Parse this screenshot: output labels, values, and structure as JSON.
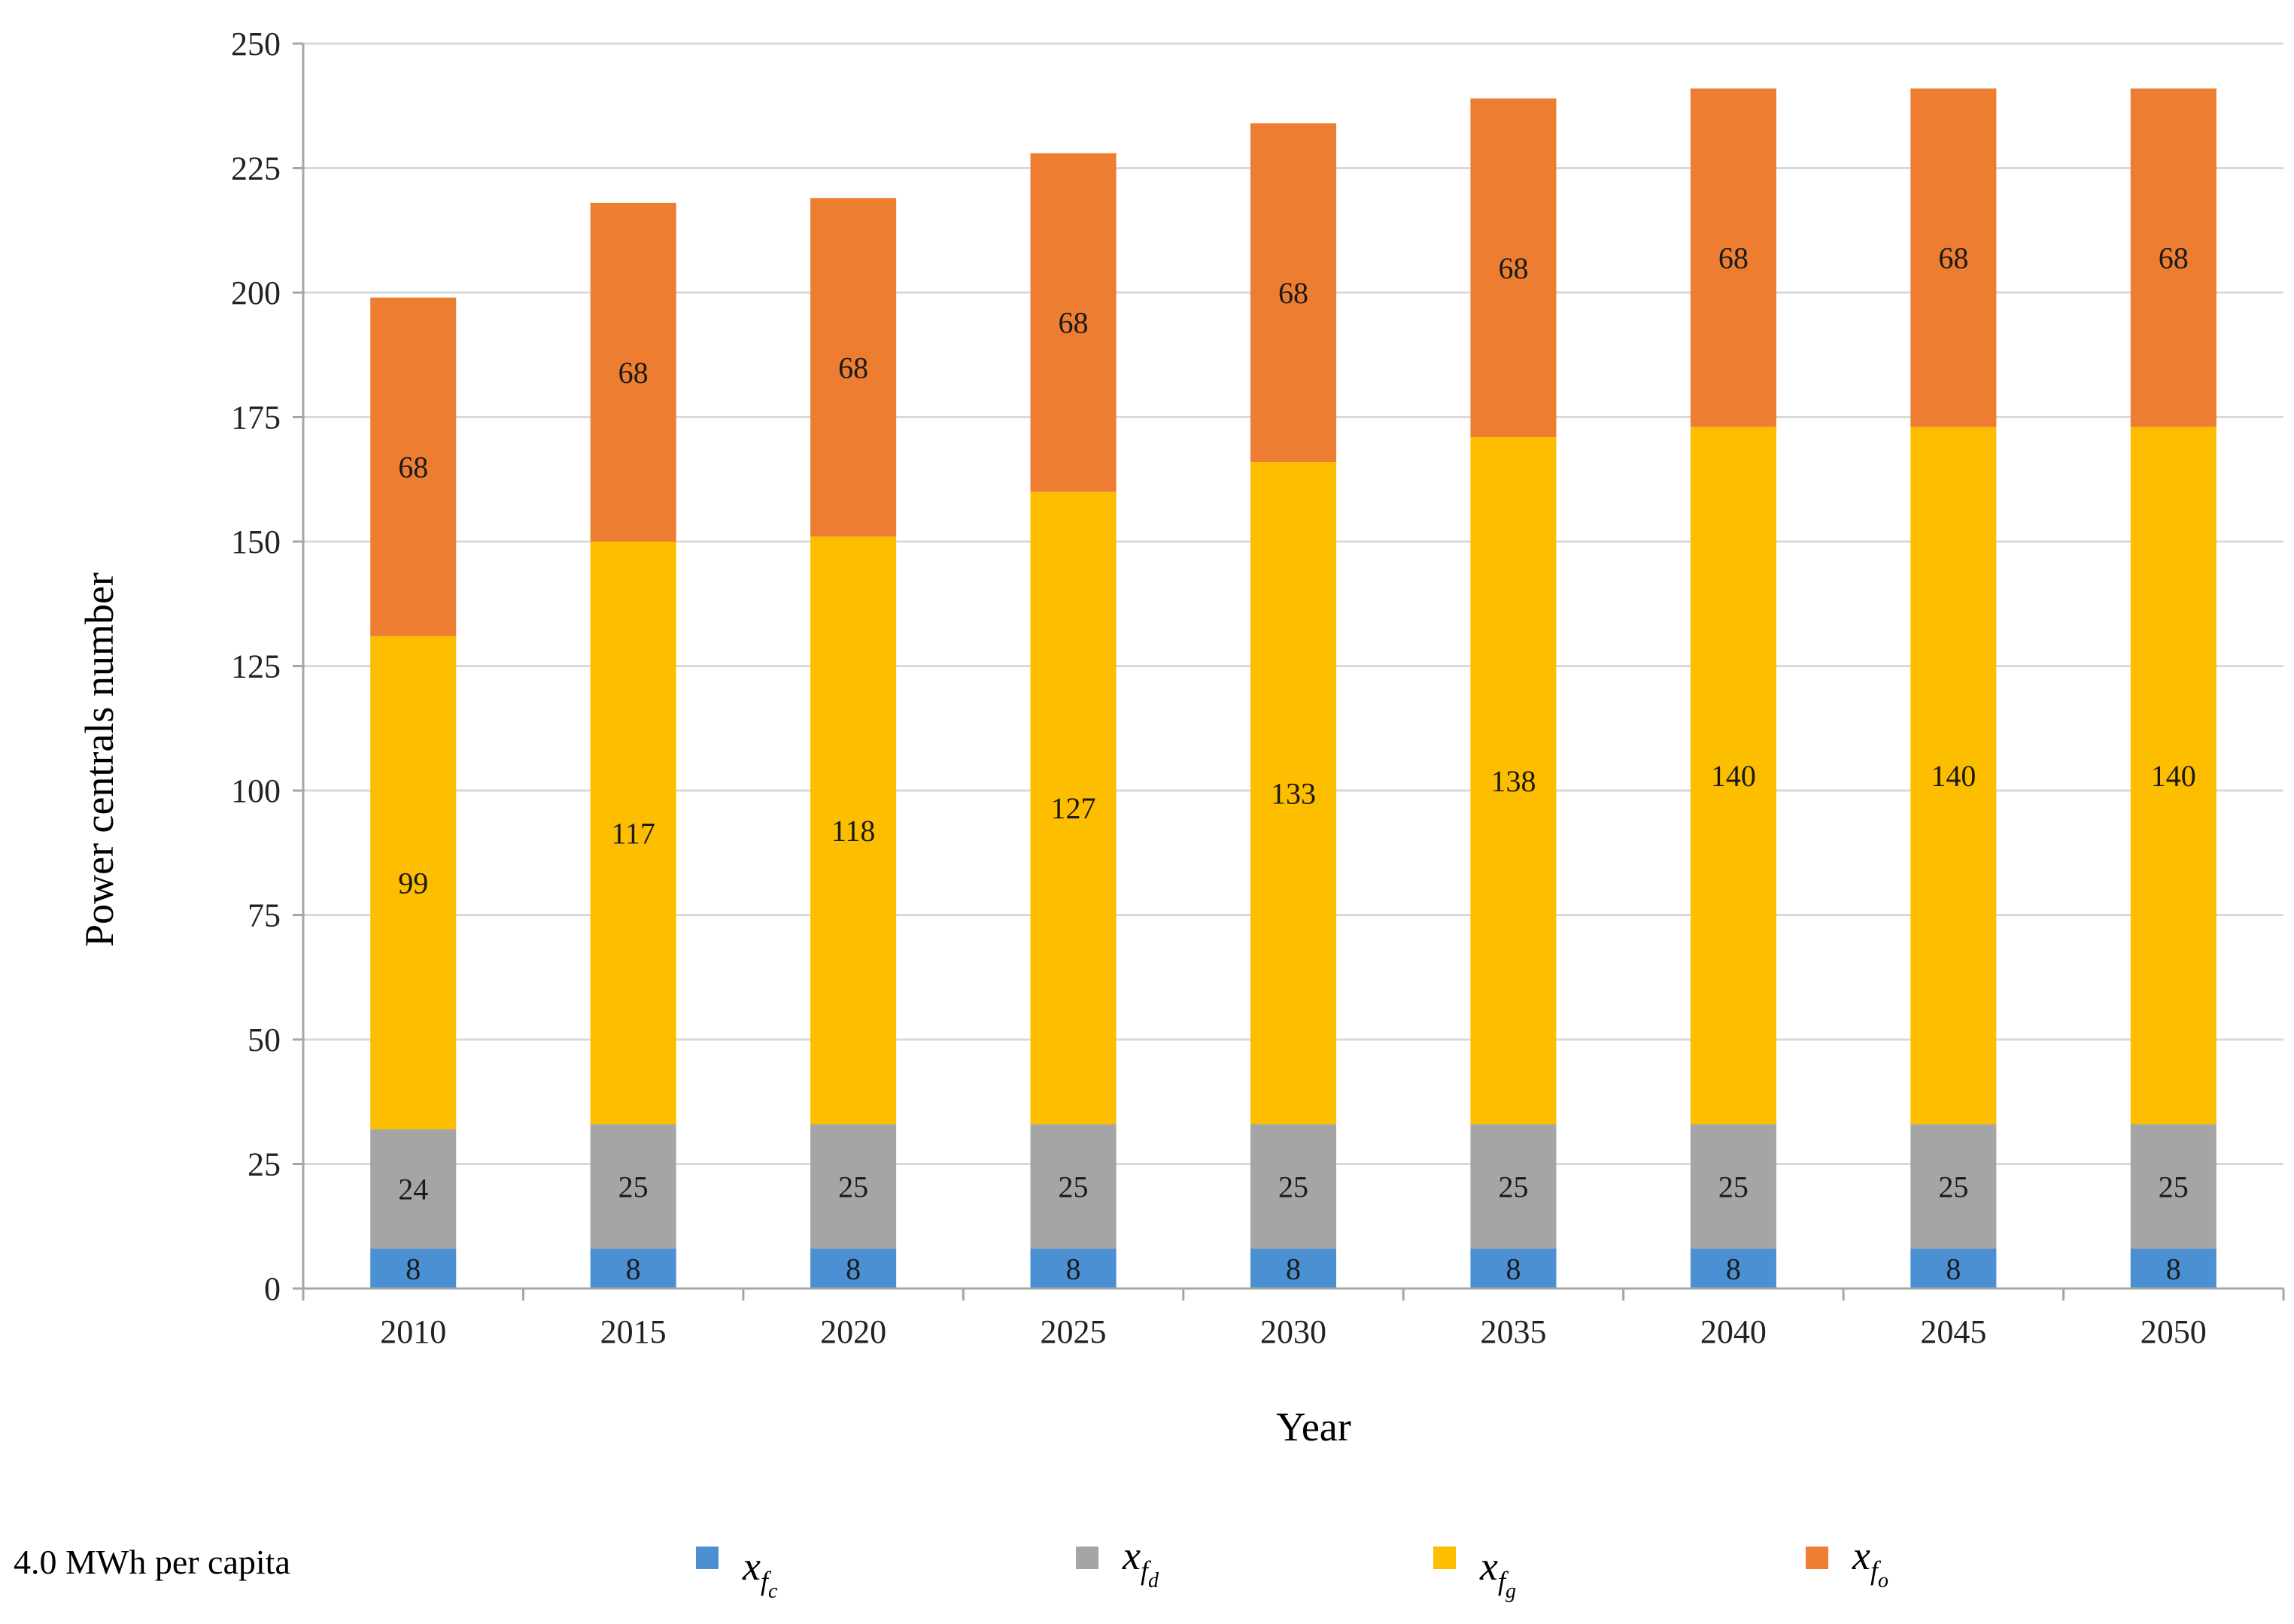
{
  "chart_data": {
    "type": "bar",
    "stacked": true,
    "categories": [
      "2010",
      "2015",
      "2020",
      "2025",
      "2030",
      "2035",
      "2040",
      "2045",
      "2050"
    ],
    "series": [
      {
        "name": "x_fc",
        "symbol": "x",
        "subscript": "f",
        "subsubscript": "c",
        "color": "#4a90d2",
        "values": [
          8,
          8,
          8,
          8,
          8,
          8,
          8,
          8,
          8
        ],
        "labels": [
          "8",
          "8",
          "8",
          "8",
          "8",
          "8",
          "8",
          "8",
          "8"
        ]
      },
      {
        "name": "x_fd",
        "symbol": "x",
        "subscript": "f",
        "subsubscript": "d",
        "color": "#a5a5a5",
        "values": [
          24,
          25,
          25,
          25,
          25,
          25,
          25,
          25,
          25
        ],
        "labels": [
          "24",
          "25",
          "25",
          "25",
          "25",
          "25",
          "25",
          "25",
          "25"
        ]
      },
      {
        "name": "x_fg",
        "symbol": "x",
        "subscript": "f",
        "subsubscript": "g",
        "color": "#fdbe00",
        "values": [
          99,
          117,
          118,
          127,
          133,
          138,
          140,
          140,
          140
        ],
        "labels": [
          "99",
          "117",
          "118",
          "127",
          "133",
          "138",
          "140",
          "140",
          "140"
        ]
      },
      {
        "name": "x_fo",
        "symbol": "x",
        "subscript": "f",
        "subsubscript": "o",
        "color": "#ed7d31",
        "values": [
          68,
          68,
          68,
          68,
          68,
          68,
          68,
          68,
          68
        ],
        "labels": [
          "68",
          "68",
          "68",
          "68",
          "68",
          "68",
          "68",
          "68",
          "68"
        ]
      }
    ],
    "ylim": [
      0,
      250
    ],
    "yticks": [
      0,
      25,
      50,
      75,
      100,
      125,
      150,
      175,
      200,
      225,
      250
    ],
    "ytick_labels": [
      "0",
      "25",
      "50",
      "75",
      "100",
      "125",
      "150",
      "175",
      "200",
      "225",
      "250"
    ],
    "xlabel": "Year",
    "ylabel": "Power centrals number",
    "grid": true,
    "legend_title": "4.0 MWh per capita",
    "legend_position": "bottom"
  }
}
